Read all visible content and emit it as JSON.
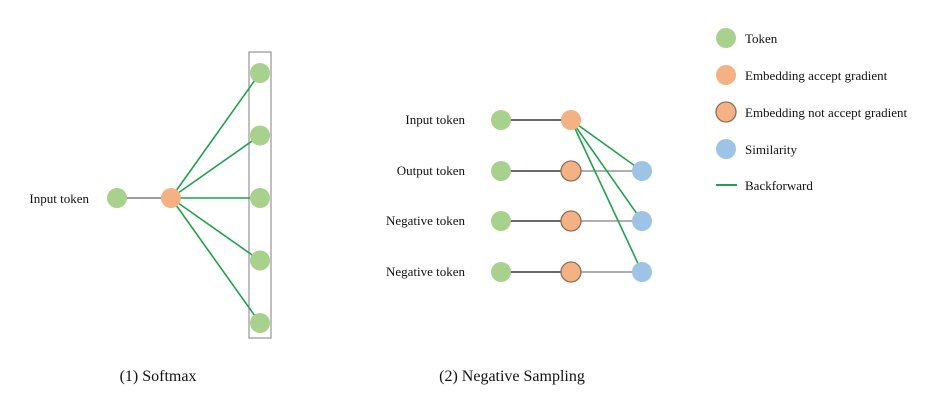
{
  "colors": {
    "token": "#a9d18e",
    "embedding": "#f4b183",
    "similarity": "#9dc3e6",
    "backforward": "#1fa24b",
    "plain_edge": "#7f7f7f",
    "node_border": "#8c6d5a",
    "box_border": "#7f7f7f"
  },
  "legend": {
    "token": "Token",
    "accept": "Embedding accept gradient",
    "not_accept": "Embedding not accept gradient",
    "similarity": "Similarity",
    "backforward": "Backforward"
  },
  "softmax": {
    "input_label": "Input token",
    "caption": "(1) Softmax",
    "output_count": 5
  },
  "negative_sampling": {
    "caption": "(2) Negative Sampling",
    "rows": [
      {
        "label": "Input token",
        "embedding": "accept"
      },
      {
        "label": "Output token",
        "embedding": "not_accept"
      },
      {
        "label": "Negative token",
        "embedding": "not_accept"
      },
      {
        "label": "Negative token",
        "embedding": "not_accept"
      }
    ]
  }
}
